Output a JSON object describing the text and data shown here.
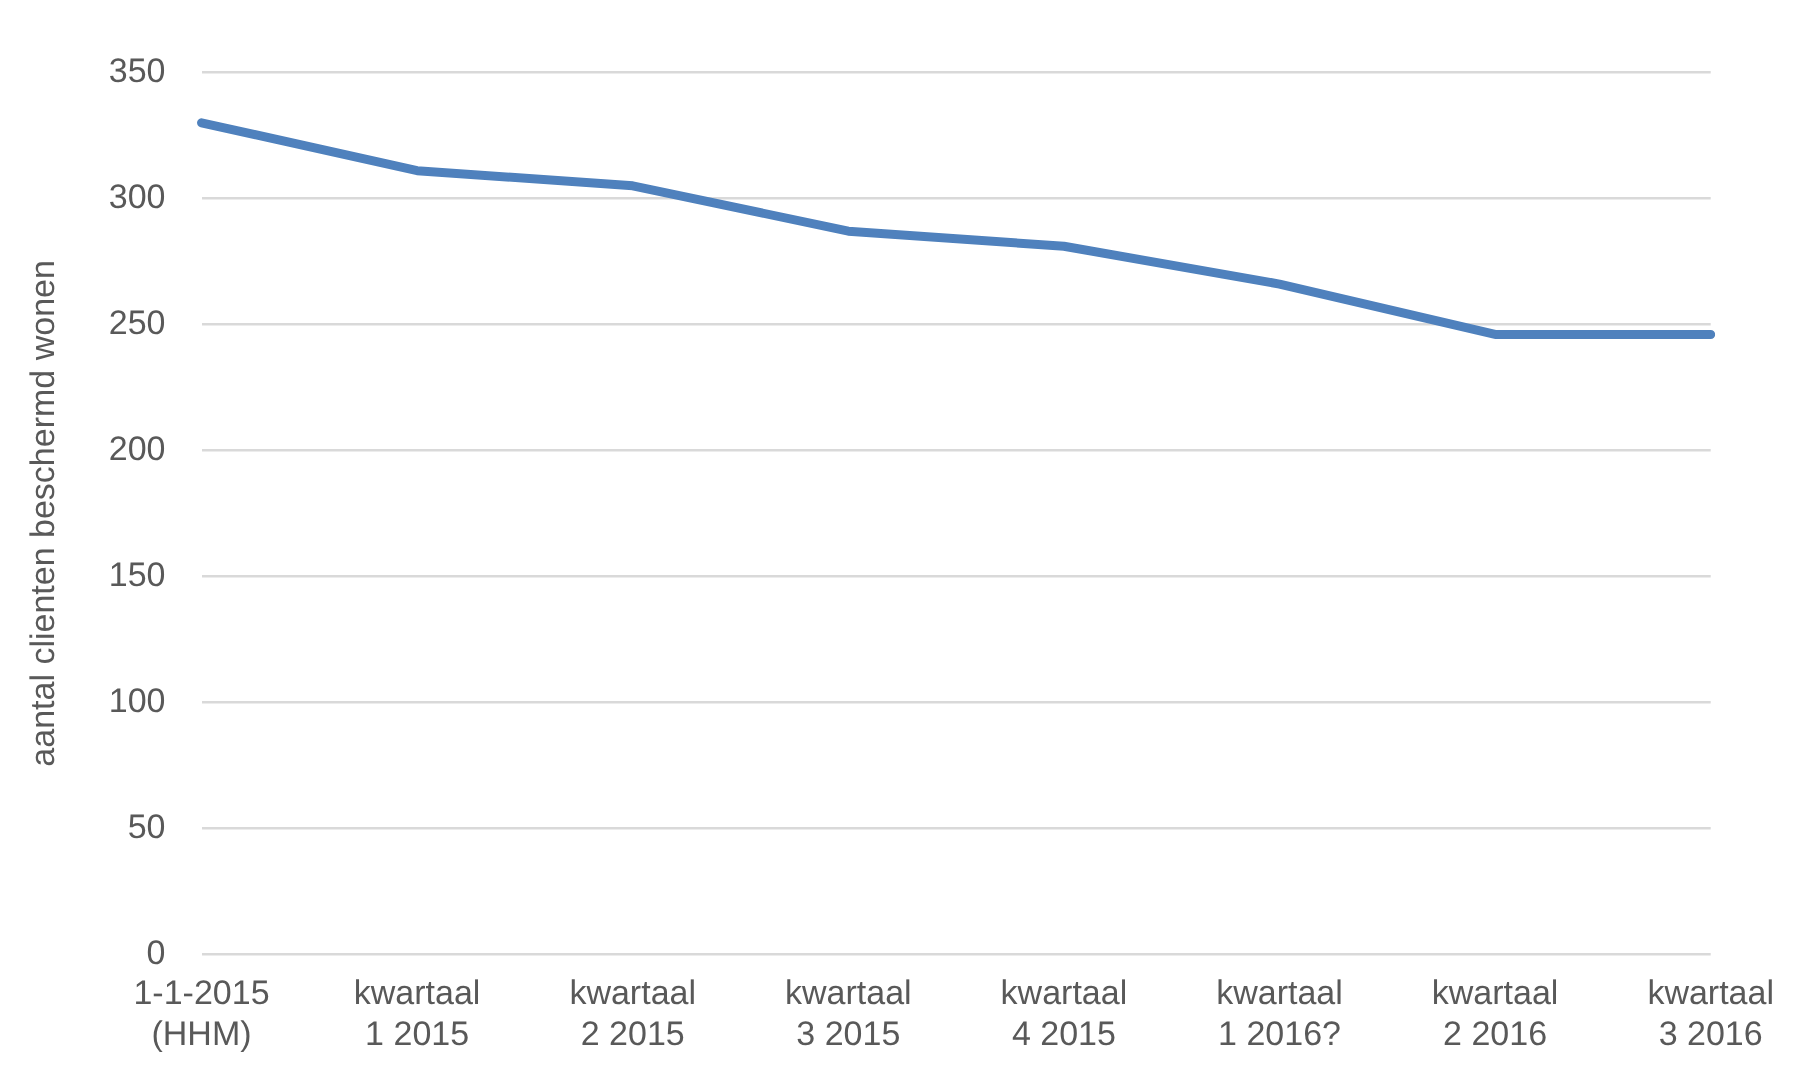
{
  "chart_data": {
    "type": "line",
    "ylabel": "aantal clienten beschermd wonen",
    "categories": [
      "1-1-2015\n(HHM)",
      "kwartaal\n1 2015",
      "kwartaal\n2 2015",
      "kwartaal\n3 2015",
      "kwartaal\n4 2015",
      "kwartaal\n1 2016?",
      "kwartaal\n2 2016",
      "kwartaal\n3 2016"
    ],
    "series": [
      {
        "color": "#4f81bd",
        "values": [
          330,
          311,
          305,
          287,
          281,
          266,
          246,
          246
        ]
      }
    ],
    "ylim": [
      0,
      350
    ],
    "yticks": [
      0,
      50,
      100,
      150,
      200,
      250,
      300,
      350
    ],
    "grid": "y",
    "legend": false,
    "marker": "none",
    "line_style": "solid"
  }
}
